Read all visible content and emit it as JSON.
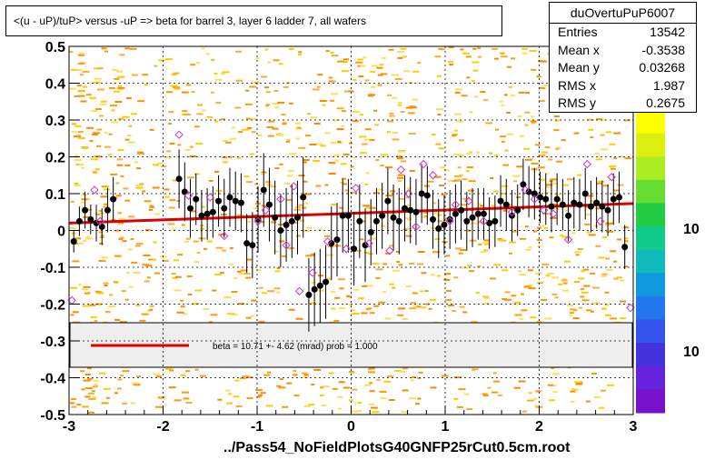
{
  "title": "<(u - uP)/tuP> versus  -uP => beta for barrel 3, layer 6 ladder 7, all wafers",
  "stats": {
    "name": "duOvertuPuP6007",
    "rows": [
      {
        "key": "Entries",
        "value": "13542"
      },
      {
        "key": "Mean x",
        "value": "-0.3538"
      },
      {
        "key": "Mean y",
        "value": "0.03268"
      },
      {
        "key": "RMS x",
        "value": "1.987"
      },
      {
        "key": "RMS y",
        "value": "0.2675"
      }
    ]
  },
  "fit_legend": "beta =   10.71 +-  4.62 (mrad) prob = 1.000",
  "footer": "../Pass54_NoFieldPlotsG40GNFP25rCut0.5cm.root",
  "colorbar_labels": [
    "10",
    "10"
  ],
  "colors": {
    "profile_points": "#000000",
    "open_markers": "#cc33cc",
    "fit_line": "#dd0000",
    "histogram": "#ff9900",
    "legend_band": "#eeeeee"
  },
  "chart_data": {
    "type": "scatter",
    "xlim": [
      -3,
      3
    ],
    "ylim": [
      -0.5,
      0.5
    ],
    "x_ticks": [
      -3,
      -2,
      -1,
      0,
      1,
      2,
      3
    ],
    "y_ticks": [
      -0.5,
      -0.4,
      -0.3,
      -0.2,
      -0.1,
      0,
      0.1,
      0.2,
      0.3,
      0.4,
      0.5
    ],
    "x_tick_labels": [
      "-3",
      "-2",
      "-1",
      "0",
      "1",
      "2",
      "3"
    ],
    "y_tick_labels": [
      "-0.5",
      "-0.4",
      "-0.3",
      "-0.2",
      "-0.1",
      "0",
      "0.1",
      "0.2",
      "0.3",
      "0.4",
      "0.5"
    ],
    "grid": true,
    "fit_line": {
      "x": [
        -3,
        3
      ],
      "y": [
        0.02,
        0.073
      ]
    },
    "profile": [
      [
        -2.95,
        -0.03,
        0.03
      ],
      [
        -2.89,
        0.025,
        0.04
      ],
      [
        -2.83,
        0.055,
        0.05
      ],
      [
        -2.77,
        0.03,
        0.04
      ],
      [
        -2.71,
        0.02,
        0.05
      ],
      [
        -2.65,
        0.01,
        0.05
      ],
      [
        -2.59,
        0.055,
        0.06
      ],
      [
        -2.53,
        0.085,
        0.06
      ],
      [
        -1.83,
        0.14,
        0.08
      ],
      [
        -1.77,
        0.105,
        0.08
      ],
      [
        -1.71,
        0.06,
        0.08
      ],
      [
        -1.65,
        0.085,
        0.07
      ],
      [
        -1.59,
        0.04,
        0.07
      ],
      [
        -1.53,
        0.045,
        0.07
      ],
      [
        -1.47,
        0.05,
        0.07
      ],
      [
        -1.41,
        0.08,
        0.07
      ],
      [
        -1.35,
        0.06,
        0.08
      ],
      [
        -1.29,
        0.09,
        0.08
      ],
      [
        -1.23,
        0.08,
        0.08
      ],
      [
        -1.17,
        0.075,
        0.08
      ],
      [
        -1.11,
        -0.035,
        0.08
      ],
      [
        -1.05,
        -0.04,
        0.09
      ],
      [
        -0.99,
        0.03,
        0.09
      ],
      [
        -0.93,
        0.11,
        0.1
      ],
      [
        -0.87,
        0.07,
        0.1
      ],
      [
        -0.81,
        0.035,
        0.1
      ],
      [
        -0.75,
        0.0,
        0.1
      ],
      [
        -0.69,
        0.015,
        0.1
      ],
      [
        -0.63,
        0.025,
        0.1
      ],
      [
        -0.57,
        0.035,
        0.1
      ],
      [
        -0.51,
        0.09,
        0.11
      ],
      [
        -0.45,
        -0.175,
        0.1
      ],
      [
        -0.39,
        -0.16,
        0.1
      ],
      [
        -0.33,
        -0.15,
        0.1
      ],
      [
        -0.27,
        -0.14,
        0.1
      ],
      [
        -0.21,
        -0.035,
        0.1
      ],
      [
        -0.15,
        -0.025,
        0.1
      ],
      [
        -0.09,
        0.04,
        0.1
      ],
      [
        -0.03,
        0.04,
        0.1
      ],
      [
        0.03,
        -0.05,
        0.1
      ],
      [
        0.09,
        0.025,
        0.1
      ],
      [
        0.15,
        -0.04,
        0.1
      ],
      [
        0.21,
        -0.005,
        0.09
      ],
      [
        0.27,
        0.025,
        0.09
      ],
      [
        0.33,
        0.04,
        0.09
      ],
      [
        0.39,
        0.08,
        0.09
      ],
      [
        0.45,
        0.035,
        0.09
      ],
      [
        0.51,
        0.025,
        0.09
      ],
      [
        0.57,
        0.06,
        0.09
      ],
      [
        0.63,
        0.055,
        0.09
      ],
      [
        0.69,
        0.05,
        0.09
      ],
      [
        0.75,
        0.1,
        0.08
      ],
      [
        0.81,
        0.095,
        0.08
      ],
      [
        0.87,
        0.03,
        0.08
      ],
      [
        0.93,
        0.005,
        0.08
      ],
      [
        0.99,
        0.015,
        0.08
      ],
      [
        1.05,
        0.03,
        0.08
      ],
      [
        1.11,
        0.045,
        0.08
      ],
      [
        1.17,
        0.055,
        0.08
      ],
      [
        1.23,
        0.025,
        0.08
      ],
      [
        1.29,
        0.035,
        0.08
      ],
      [
        1.35,
        0.045,
        0.07
      ],
      [
        1.41,
        0.045,
        0.07
      ],
      [
        1.47,
        0.02,
        0.07
      ],
      [
        1.53,
        0.025,
        0.07
      ],
      [
        1.59,
        0.08,
        0.07
      ],
      [
        1.65,
        0.07,
        0.07
      ],
      [
        1.71,
        0.04,
        0.07
      ],
      [
        1.77,
        0.055,
        0.07
      ],
      [
        1.83,
        0.125,
        0.07
      ],
      [
        1.89,
        0.105,
        0.07
      ],
      [
        1.95,
        0.1,
        0.07
      ],
      [
        2.01,
        0.09,
        0.07
      ],
      [
        2.07,
        0.085,
        0.07
      ],
      [
        2.13,
        0.065,
        0.07
      ],
      [
        2.19,
        0.085,
        0.07
      ],
      [
        2.25,
        0.07,
        0.07
      ],
      [
        2.31,
        0.04,
        0.07
      ],
      [
        2.37,
        0.075,
        0.07
      ],
      [
        2.43,
        0.07,
        0.07
      ],
      [
        2.49,
        0.1,
        0.07
      ],
      [
        2.55,
        0.065,
        0.07
      ],
      [
        2.61,
        0.075,
        0.07
      ],
      [
        2.67,
        0.065,
        0.07
      ],
      [
        2.73,
        0.055,
        0.07
      ],
      [
        2.79,
        0.085,
        0.07
      ],
      [
        2.85,
        0.09,
        0.07
      ],
      [
        2.91,
        -0.045,
        0.06
      ]
    ],
    "open_markers": [
      [
        -2.97,
        -0.19
      ],
      [
        -2.73,
        0.11
      ],
      [
        -2.67,
        0.025
      ],
      [
        -1.83,
        0.26
      ],
      [
        -1.73,
        0.095
      ],
      [
        -1.5,
        0.09
      ],
      [
        -1.35,
        -0.015
      ],
      [
        -0.99,
        0.025
      ],
      [
        -0.91,
        0.055
      ],
      [
        -0.75,
        0.085
      ],
      [
        -0.69,
        -0.04
      ],
      [
        -0.61,
        0.12
      ],
      [
        -0.55,
        -0.165
      ],
      [
        -0.41,
        -0.115
      ],
      [
        -0.25,
        -0.03
      ],
      [
        -0.05,
        -0.05
      ],
      [
        0.05,
        0.115
      ],
      [
        0.19,
        -0.035
      ],
      [
        0.41,
        -0.055
      ],
      [
        0.53,
        0.165
      ],
      [
        0.61,
        0.1
      ],
      [
        0.69,
        0.01
      ],
      [
        0.77,
        0.18
      ],
      [
        0.87,
        0.15
      ],
      [
        1.05,
        0.025
      ],
      [
        1.11,
        0.07
      ],
      [
        1.25,
        0.08
      ],
      [
        1.41,
        0.025
      ],
      [
        1.71,
        0.05
      ],
      [
        1.85,
        0.11
      ],
      [
        1.95,
        0.085
      ],
      [
        2.05,
        0.055
      ],
      [
        2.15,
        0.045
      ],
      [
        2.31,
        -0.025
      ],
      [
        2.51,
        0.18
      ],
      [
        2.65,
        0.025
      ],
      [
        2.77,
        0.145
      ],
      [
        2.97,
        -0.21
      ]
    ]
  }
}
